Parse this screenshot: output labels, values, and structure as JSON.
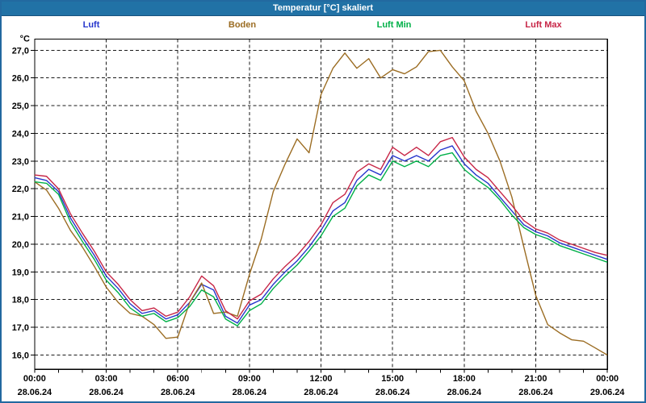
{
  "window": {
    "title": "Temperatur [°C] skaliert"
  },
  "chart_data": {
    "type": "line",
    "title": "Temperatur [°C] skaliert",
    "unit_label": "°C",
    "grid": "dashed",
    "legend_position": "top",
    "xlim_hours": [
      0,
      24
    ],
    "ylim": [
      15.48,
      27.4
    ],
    "x_hours": [
      0,
      0.5,
      1,
      1.5,
      2,
      2.5,
      3,
      3.5,
      4,
      4.5,
      5,
      5.5,
      6,
      6.5,
      7,
      7.5,
      8,
      8.5,
      9,
      9.5,
      10,
      10.5,
      11,
      11.5,
      12,
      12.5,
      13,
      13.5,
      14,
      14.5,
      15,
      15.5,
      16,
      16.5,
      17,
      17.5,
      18,
      18.5,
      19,
      19.5,
      20,
      20.5,
      21,
      21.5,
      22,
      22.5,
      23,
      23.5,
      24
    ],
    "x_ticks": [
      {
        "hour": 0,
        "time": "00:00",
        "date": "28.06.24"
      },
      {
        "hour": 3,
        "time": "03:00",
        "date": "28.06.24"
      },
      {
        "hour": 6,
        "time": "06:00",
        "date": "28.06.24"
      },
      {
        "hour": 9,
        "time": "09:00",
        "date": "28.06.24"
      },
      {
        "hour": 12,
        "time": "12:00",
        "date": "28.06.24"
      },
      {
        "hour": 15,
        "time": "15:00",
        "date": "28.06.24"
      },
      {
        "hour": 18,
        "time": "18:00",
        "date": "28.06.24"
      },
      {
        "hour": 21,
        "time": "21:00",
        "date": "28.06.24"
      },
      {
        "hour": 24,
        "time": "00:00",
        "date": "29.06.24"
      }
    ],
    "y_ticks": [
      {
        "value": 27.0,
        "label": "27,0"
      },
      {
        "value": 26.0,
        "label": "26,0"
      },
      {
        "value": 25.0,
        "label": "25,0"
      },
      {
        "value": 24.0,
        "label": "24,0"
      },
      {
        "value": 23.0,
        "label": "23,0"
      },
      {
        "value": 22.0,
        "label": "22,0"
      },
      {
        "value": 21.0,
        "label": "21,0"
      },
      {
        "value": 20.0,
        "label": "20,0"
      },
      {
        "value": 19.0,
        "label": "19,0"
      },
      {
        "value": 18.0,
        "label": "18,0"
      },
      {
        "value": 17.0,
        "label": "17,0"
      },
      {
        "value": 16.0,
        "label": "16,0"
      }
    ],
    "series": [
      {
        "name": "Luft",
        "color": "#2636cc",
        "values": [
          22.4,
          22.3,
          21.9,
          20.95,
          20.25,
          19.6,
          18.85,
          18.4,
          17.85,
          17.5,
          17.6,
          17.3,
          17.45,
          17.9,
          18.55,
          18.35,
          17.4,
          17.15,
          17.8,
          18.0,
          18.55,
          19.0,
          19.4,
          19.9,
          20.5,
          21.2,
          21.5,
          22.3,
          22.7,
          22.5,
          23.2,
          23.0,
          23.2,
          23.0,
          23.4,
          23.55,
          22.9,
          22.5,
          22.2,
          21.7,
          21.2,
          20.7,
          20.45,
          20.3,
          20.05,
          19.9,
          19.75,
          19.6,
          19.45
        ]
      },
      {
        "name": "Boden",
        "color": "#9b6c22",
        "values": [
          22.25,
          21.95,
          21.3,
          20.5,
          19.9,
          19.2,
          18.45,
          17.9,
          17.5,
          17.4,
          17.1,
          16.6,
          16.65,
          17.9,
          18.6,
          17.5,
          17.55,
          17.4,
          18.9,
          20.2,
          21.9,
          22.9,
          23.8,
          23.3,
          25.4,
          26.35,
          26.9,
          26.35,
          26.7,
          26.0,
          26.3,
          26.15,
          26.4,
          26.95,
          27.0,
          26.4,
          25.9,
          24.8,
          24.0,
          23.0,
          21.7,
          19.9,
          18.15,
          17.1,
          16.8,
          16.55,
          16.5,
          16.25,
          16.0
        ]
      },
      {
        "name": "Luft Min",
        "color": "#00b048",
        "values": [
          22.25,
          22.2,
          21.8,
          20.8,
          20.1,
          19.45,
          18.7,
          18.25,
          17.7,
          17.4,
          17.5,
          17.2,
          17.35,
          17.75,
          18.35,
          18.1,
          17.3,
          17.05,
          17.6,
          17.85,
          18.4,
          18.85,
          19.25,
          19.75,
          20.3,
          21.0,
          21.3,
          22.1,
          22.5,
          22.3,
          23.0,
          22.8,
          23.0,
          22.8,
          23.2,
          23.3,
          22.7,
          22.35,
          22.05,
          21.6,
          21.05,
          20.6,
          20.35,
          20.2,
          19.95,
          19.8,
          19.65,
          19.5,
          19.35
        ]
      },
      {
        "name": "Luft Max",
        "color": "#c72546",
        "values": [
          22.5,
          22.45,
          22.0,
          21.1,
          20.4,
          19.75,
          19.0,
          18.55,
          18.0,
          17.6,
          17.7,
          17.4,
          17.55,
          18.1,
          18.85,
          18.5,
          17.6,
          17.3,
          17.95,
          18.2,
          18.75,
          19.2,
          19.6,
          20.1,
          20.7,
          21.5,
          21.8,
          22.6,
          22.9,
          22.7,
          23.5,
          23.2,
          23.5,
          23.2,
          23.7,
          23.85,
          23.15,
          22.7,
          22.4,
          21.9,
          21.4,
          20.85,
          20.55,
          20.4,
          20.15,
          20.0,
          19.85,
          19.7,
          19.6
        ]
      }
    ]
  }
}
